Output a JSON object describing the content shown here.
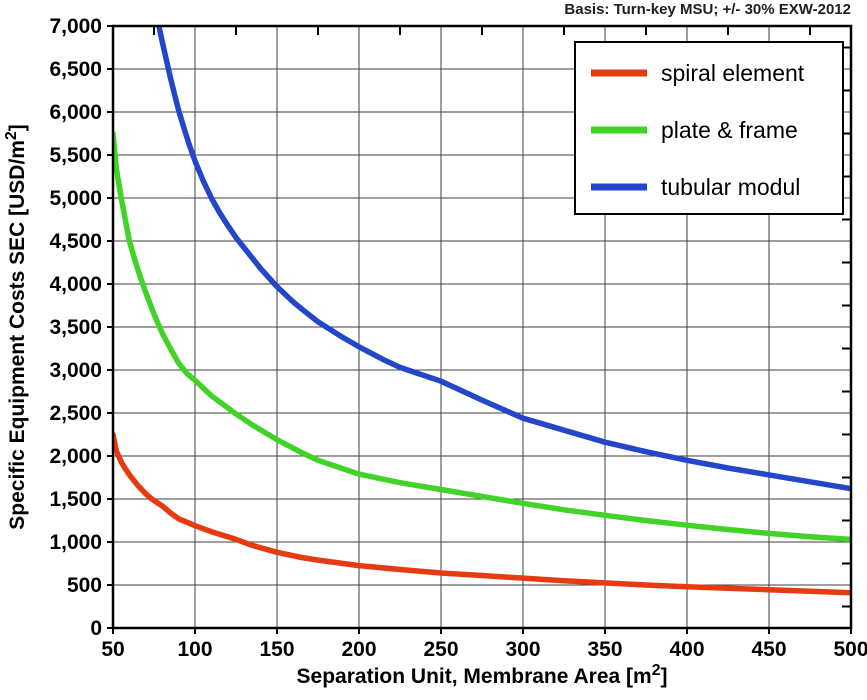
{
  "annotation": {
    "text": "Basis: Turn-key MSU; +/- 30% EXW-2012",
    "color": "#1f1f1f"
  },
  "chart_data": {
    "type": "line",
    "title": "",
    "xlabel": "Separation Unit, Membrane Area  [m²]",
    "ylabel": "Specific Equipment Costs SEC [USD/m²]",
    "xlim": [
      50,
      500
    ],
    "ylim": [
      0,
      7000
    ],
    "xticks": [
      50,
      100,
      150,
      200,
      250,
      300,
      350,
      400,
      450,
      500
    ],
    "yticks": [
      0,
      500,
      1000,
      1500,
      2000,
      2500,
      3000,
      3500,
      4000,
      4500,
      5000,
      5500,
      6000,
      6500,
      7000
    ],
    "x_minor_step": 25,
    "y_minor_step": 250,
    "grid": true,
    "grid_color": "#3f3f3f",
    "border_color": "#000000",
    "legend_position": "top-right",
    "series": [
      {
        "name": "spiral element",
        "color": "#e83a10",
        "points": [
          [
            50,
            2250
          ],
          [
            52,
            2060
          ],
          [
            55,
            1930
          ],
          [
            58,
            1840
          ],
          [
            60,
            1780
          ],
          [
            65,
            1660
          ],
          [
            70,
            1560
          ],
          [
            73,
            1510
          ],
          [
            76,
            1470
          ],
          [
            80,
            1420
          ],
          [
            85,
            1340
          ],
          [
            90,
            1270
          ],
          [
            95,
            1230
          ],
          [
            100,
            1190
          ],
          [
            110,
            1120
          ],
          [
            120,
            1060
          ],
          [
            125,
            1030
          ],
          [
            135,
            960
          ],
          [
            150,
            880
          ],
          [
            165,
            820
          ],
          [
            175,
            790
          ],
          [
            200,
            725
          ],
          [
            225,
            680
          ],
          [
            250,
            640
          ],
          [
            275,
            610
          ],
          [
            300,
            580
          ],
          [
            325,
            550
          ],
          [
            350,
            525
          ],
          [
            375,
            500
          ],
          [
            400,
            480
          ],
          [
            425,
            462
          ],
          [
            450,
            445
          ],
          [
            475,
            427
          ],
          [
            500,
            410
          ]
        ]
      },
      {
        "name": "plate & frame",
        "color": "#41d328",
        "points": [
          [
            50,
            5750
          ],
          [
            52,
            5350
          ],
          [
            55,
            5000
          ],
          [
            58,
            4700
          ],
          [
            60,
            4500
          ],
          [
            63,
            4300
          ],
          [
            66,
            4120
          ],
          [
            70,
            3900
          ],
          [
            75,
            3650
          ],
          [
            80,
            3430
          ],
          [
            85,
            3250
          ],
          [
            90,
            3080
          ],
          [
            95,
            2960
          ],
          [
            100,
            2880
          ],
          [
            110,
            2700
          ],
          [
            120,
            2560
          ],
          [
            125,
            2490
          ],
          [
            135,
            2360
          ],
          [
            150,
            2190
          ],
          [
            165,
            2040
          ],
          [
            175,
            1950
          ],
          [
            200,
            1790
          ],
          [
            225,
            1690
          ],
          [
            250,
            1610
          ],
          [
            275,
            1530
          ],
          [
            300,
            1450
          ],
          [
            325,
            1375
          ],
          [
            350,
            1310
          ],
          [
            375,
            1250
          ],
          [
            400,
            1195
          ],
          [
            425,
            1145
          ],
          [
            450,
            1100
          ],
          [
            475,
            1060
          ],
          [
            500,
            1030
          ]
        ]
      },
      {
        "name": "tubular modul",
        "color": "#2446c8",
        "points": [
          [
            78,
            7000
          ],
          [
            80,
            6820
          ],
          [
            82,
            6650
          ],
          [
            85,
            6400
          ],
          [
            88,
            6170
          ],
          [
            90,
            6020
          ],
          [
            93,
            5830
          ],
          [
            96,
            5650
          ],
          [
            100,
            5430
          ],
          [
            105,
            5200
          ],
          [
            110,
            5000
          ],
          [
            115,
            4830
          ],
          [
            120,
            4680
          ],
          [
            125,
            4540
          ],
          [
            130,
            4420
          ],
          [
            140,
            4180
          ],
          [
            150,
            3970
          ],
          [
            160,
            3790
          ],
          [
            165,
            3710
          ],
          [
            175,
            3560
          ],
          [
            190,
            3380
          ],
          [
            200,
            3270
          ],
          [
            215,
            3120
          ],
          [
            225,
            3030
          ],
          [
            250,
            2870
          ],
          [
            275,
            2650
          ],
          [
            300,
            2440
          ],
          [
            325,
            2300
          ],
          [
            350,
            2160
          ],
          [
            375,
            2050
          ],
          [
            400,
            1950
          ],
          [
            425,
            1860
          ],
          [
            450,
            1780
          ],
          [
            475,
            1700
          ],
          [
            500,
            1620
          ]
        ]
      }
    ]
  }
}
